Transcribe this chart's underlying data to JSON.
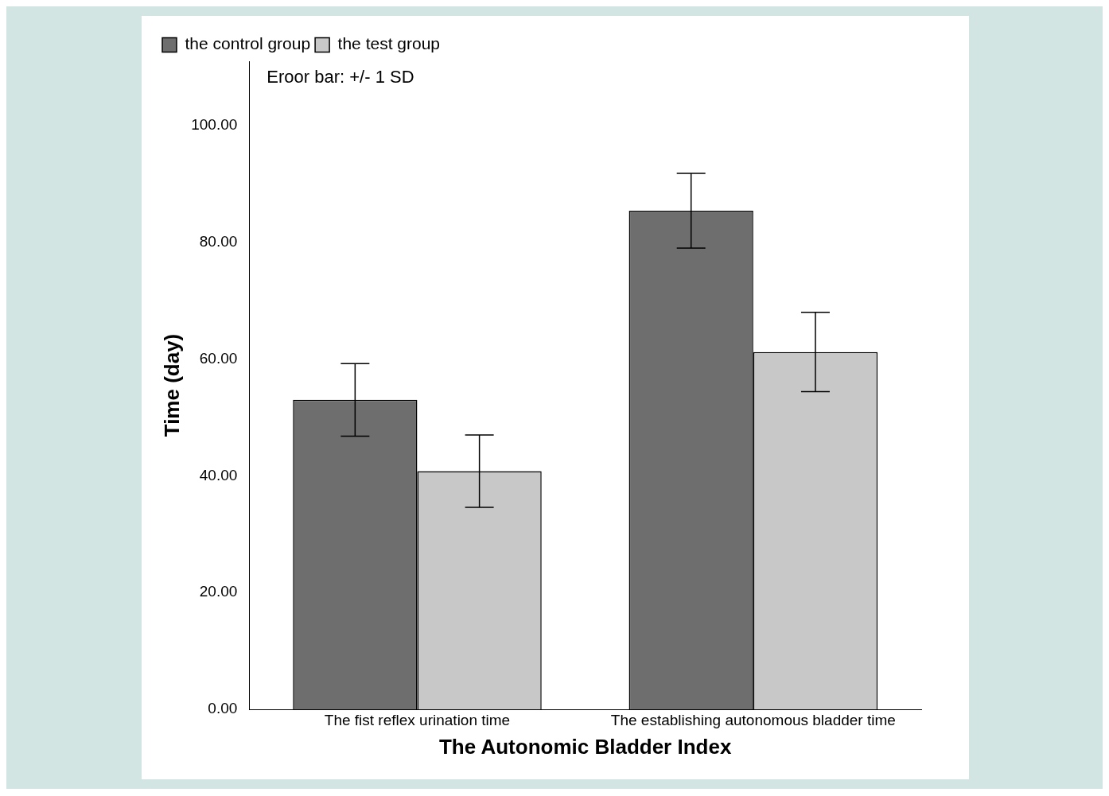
{
  "chart_data": {
    "type": "bar",
    "xlabel": "The Autonomic Bladder Index",
    "ylabel": "Time (day)",
    "categories": [
      "The fist reflex urination time",
      "The establishing autonomous bladder time"
    ],
    "series": [
      {
        "name": "the control group",
        "color": "#6e6e6e",
        "values": [
          53.0,
          85.4
        ],
        "errors": [
          6.2,
          6.4
        ]
      },
      {
        "name": "the test group",
        "color": "#c8c8c8",
        "values": [
          40.8,
          61.2
        ],
        "errors": [
          6.2,
          6.8
        ]
      }
    ],
    "ylim": [
      0,
      111
    ],
    "yticks": [
      {
        "value": 0,
        "label": "0.00"
      },
      {
        "value": 20,
        "label": "20.00"
      },
      {
        "value": 40,
        "label": "40.00"
      },
      {
        "value": 60,
        "label": "60.00"
      },
      {
        "value": 80,
        "label": "80.00"
      },
      {
        "value": 100,
        "label": "100.00"
      }
    ],
    "annotations": [
      "Eroor bar: +/- 1 SD"
    ],
    "legend": "top left",
    "grid": false
  }
}
